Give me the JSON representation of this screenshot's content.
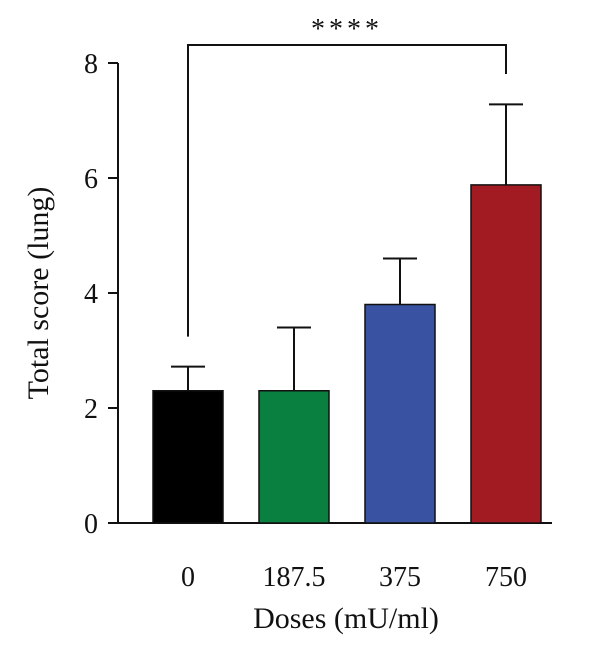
{
  "chart_data": {
    "type": "bar",
    "title": "",
    "xlabel": "Doses (mU/ml)",
    "ylabel": "Total score (lung)",
    "categories": [
      "0",
      "187.5",
      "375",
      "750"
    ],
    "values": [
      2.3,
      2.3,
      3.8,
      5.88
    ],
    "error_upper": [
      0.42,
      1.1,
      0.8,
      1.4
    ],
    "bar_colors": [
      "#000000",
      "#0a8040",
      "#3a52a2",
      "#a31b22"
    ],
    "ylim": [
      0,
      8
    ],
    "yticks": [
      0,
      2,
      4,
      6,
      8
    ],
    "grid": false,
    "significance": {
      "from_category": "0",
      "to_category": "750",
      "label": "****"
    }
  }
}
